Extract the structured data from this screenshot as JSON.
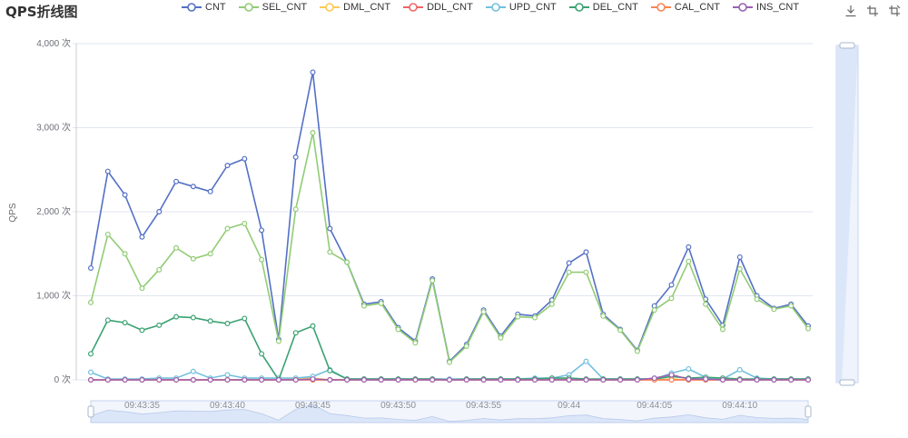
{
  "chart_data": {
    "type": "line",
    "title": "QPS折线图",
    "ylabel": "QPS",
    "xlabel": "",
    "ylim": [
      0,
      4000
    ],
    "yticks": [
      "4,000 次",
      "3,000 次",
      "2,000 次",
      "1,000 次",
      "0 次"
    ],
    "ytick_values": [
      4000,
      3000,
      2000,
      1000,
      0
    ],
    "xtick_labels": [
      "09:43:35",
      "09:43:40",
      "09:43:45",
      "09:43:50",
      "09:43:55",
      "09:44",
      "09:44:05",
      "09:44:10"
    ],
    "xtick_indices": [
      3,
      8,
      13,
      18,
      23,
      28,
      33,
      38
    ],
    "legend_position": "top-center",
    "grid": true,
    "num_points": 43,
    "series": [
      {
        "name": "CNT",
        "color": "#5470c6",
        "values": [
          1330,
          2480,
          2200,
          1700,
          2000,
          2360,
          2300,
          2240,
          2550,
          2630,
          1780,
          480,
          2650,
          3660,
          1800,
          1400,
          900,
          930,
          620,
          460,
          1200,
          220,
          420,
          830,
          520,
          780,
          760,
          950,
          1390,
          1520,
          780,
          600,
          350,
          880,
          1130,
          1580,
          960,
          650,
          1460,
          1000,
          850,
          900,
          640
        ]
      },
      {
        "name": "SEL_CNT",
        "color": "#91cc75",
        "values": [
          920,
          1730,
          1500,
          1090,
          1310,
          1570,
          1440,
          1500,
          1800,
          1860,
          1430,
          460,
          2030,
          2940,
          1520,
          1400,
          880,
          910,
          600,
          440,
          1180,
          210,
          400,
          810,
          500,
          750,
          740,
          900,
          1280,
          1280,
          760,
          590,
          340,
          830,
          970,
          1410,
          900,
          600,
          1320,
          960,
          840,
          880,
          610
        ]
      },
      {
        "name": "DML_CNT",
        "color": "#fac858",
        "values": [
          0,
          0,
          0,
          0,
          0,
          0,
          0,
          0,
          0,
          0,
          0,
          0,
          10,
          20,
          0,
          0,
          0,
          0,
          0,
          0,
          0,
          0,
          0,
          0,
          0,
          0,
          0,
          0,
          10,
          0,
          0,
          0,
          0,
          0,
          10,
          0,
          0,
          0,
          0,
          0,
          0,
          0,
          0
        ]
      },
      {
        "name": "DDL_CNT",
        "color": "#ee6666",
        "values": [
          0,
          0,
          0,
          0,
          0,
          0,
          0,
          0,
          0,
          0,
          0,
          0,
          0,
          0,
          0,
          0,
          0,
          0,
          0,
          0,
          0,
          0,
          0,
          0,
          0,
          0,
          0,
          0,
          0,
          0,
          0,
          0,
          0,
          0,
          0,
          0,
          0,
          0,
          0,
          0,
          0,
          0,
          0
        ]
      },
      {
        "name": "UPD_CNT",
        "color": "#73c0de",
        "values": [
          90,
          10,
          10,
          10,
          20,
          20,
          100,
          20,
          60,
          20,
          20,
          20,
          20,
          40,
          120,
          10,
          10,
          10,
          10,
          10,
          10,
          10,
          10,
          10,
          10,
          10,
          20,
          20,
          60,
          220,
          10,
          10,
          10,
          10,
          80,
          130,
          30,
          10,
          120,
          20,
          10,
          10,
          10
        ]
      },
      {
        "name": "DEL_CNT",
        "color": "#3ba272",
        "values": [
          310,
          710,
          680,
          590,
          650,
          750,
          740,
          700,
          670,
          730,
          310,
          0,
          560,
          640,
          110,
          10,
          10,
          10,
          10,
          10,
          10,
          0,
          10,
          10,
          10,
          10,
          10,
          20,
          20,
          10,
          10,
          10,
          10,
          10,
          40,
          20,
          30,
          20,
          10,
          10,
          10,
          10,
          10
        ]
      },
      {
        "name": "CAL_CNT",
        "color": "#fc8452",
        "values": [
          0,
          0,
          0,
          0,
          0,
          0,
          0,
          0,
          0,
          0,
          0,
          0,
          0,
          0,
          0,
          0,
          0,
          0,
          0,
          0,
          0,
          0,
          0,
          0,
          0,
          0,
          0,
          0,
          0,
          0,
          0,
          0,
          0,
          0,
          0,
          0,
          0,
          0,
          0,
          0,
          0,
          0,
          0
        ]
      },
      {
        "name": "INS_CNT",
        "color": "#9a60b4",
        "values": [
          0,
          0,
          0,
          0,
          0,
          0,
          0,
          0,
          0,
          0,
          0,
          0,
          0,
          10,
          0,
          0,
          0,
          0,
          0,
          0,
          0,
          0,
          0,
          0,
          0,
          0,
          0,
          0,
          0,
          0,
          0,
          0,
          0,
          20,
          60,
          10,
          10,
          0,
          0,
          0,
          0,
          0,
          0
        ]
      }
    ]
  },
  "toolbox": {
    "icons": [
      "download-icon",
      "zoom-select-icon",
      "zoom-reset-icon"
    ]
  },
  "colors": {
    "axis": "#e0e6f1",
    "axis_text": "#6e7079",
    "datazoom_fill": "#dbe6f9",
    "datazoom_border": "#c4d4f0"
  }
}
